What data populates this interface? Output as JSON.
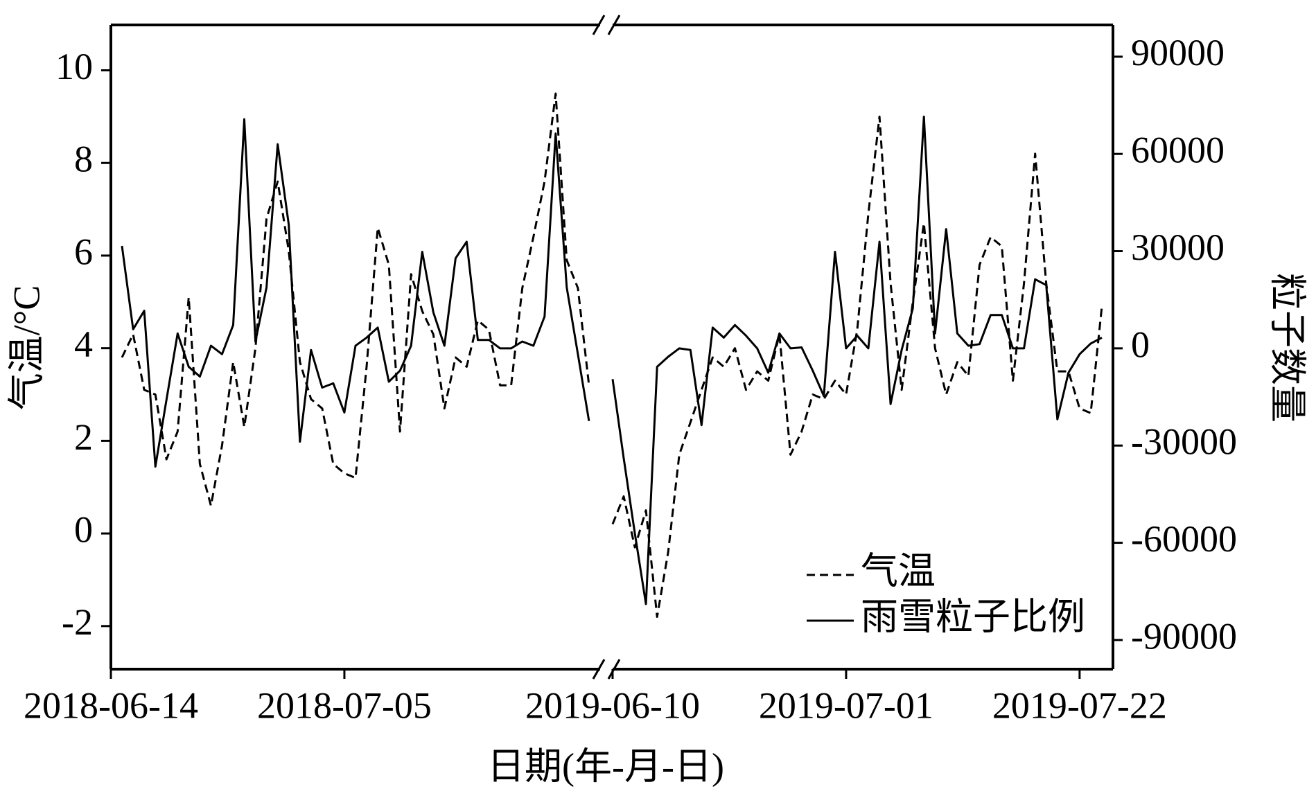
{
  "chart_data": {
    "type": "line",
    "xlabel": "日期(年-月-日)",
    "ylabel": "气温/°C",
    "y2label": "粒子数量",
    "ylim": [
      -2.93,
      10.98
    ],
    "yticks": [
      -2,
      0,
      2,
      4,
      6,
      8,
      10
    ],
    "y2lim": [
      -99000,
      99800
    ],
    "y2ticks": [
      -90000,
      -60000,
      -30000,
      0,
      30000,
      60000,
      90000
    ],
    "x_segments": [
      {
        "xlim": [
          "2018-06-14",
          "2018-07-28"
        ],
        "xticks": [
          "2018-06-14",
          "2018-07-05"
        ]
      },
      {
        "xlim": [
          "2019-06-10",
          "2019-07-25"
        ],
        "xticks": [
          "2019-06-10",
          "2019-07-01",
          "2019-07-22"
        ]
      }
    ],
    "legend": "lower right",
    "x": [
      "2018-06-15",
      "2018-06-16",
      "2018-06-17",
      "2018-06-18",
      "2018-06-19",
      "2018-06-20",
      "2018-06-21",
      "2018-06-22",
      "2018-06-23",
      "2018-06-24",
      "2018-06-25",
      "2018-06-26",
      "2018-06-27",
      "2018-06-28",
      "2018-06-29",
      "2018-06-30",
      "2018-07-01",
      "2018-07-02",
      "2018-07-03",
      "2018-07-04",
      "2018-07-05",
      "2018-07-06",
      "2018-07-07",
      "2018-07-08",
      "2018-07-09",
      "2018-07-10",
      "2018-07-11",
      "2018-07-12",
      "2018-07-13",
      "2018-07-14",
      "2018-07-15",
      "2018-07-16",
      "2018-07-17",
      "2018-07-18",
      "2018-07-19",
      "2018-07-20",
      "2018-07-21",
      "2018-07-22",
      "2018-07-23",
      "2018-07-24",
      "2018-07-25",
      "2018-07-26",
      "2018-07-27",
      "2019-06-10",
      "2019-06-11",
      "2019-06-12",
      "2019-06-13",
      "2019-06-14",
      "2019-06-15",
      "2019-06-16",
      "2019-06-17",
      "2019-06-18",
      "2019-06-19",
      "2019-06-20",
      "2019-06-21",
      "2019-06-22",
      "2019-06-23",
      "2019-06-24",
      "2019-06-25",
      "2019-06-26",
      "2019-06-27",
      "2019-06-28",
      "2019-06-29",
      "2019-06-30",
      "2019-07-01",
      "2019-07-02",
      "2019-07-03",
      "2019-07-04",
      "2019-07-05",
      "2019-07-06",
      "2019-07-07",
      "2019-07-08",
      "2019-07-09",
      "2019-07-10",
      "2019-07-11",
      "2019-07-12",
      "2019-07-13",
      "2019-07-14",
      "2019-07-15",
      "2019-07-16",
      "2019-07-17",
      "2019-07-18",
      "2019-07-19",
      "2019-07-20",
      "2019-07-21",
      "2019-07-22",
      "2019-07-23",
      "2019-07-24"
    ],
    "series": [
      {
        "name": "气温",
        "color": "#000000",
        "dash": "dashed",
        "values": [
          3.8,
          4.3,
          3.1,
          3.0,
          1.6,
          2.2,
          5.1,
          1.5,
          0.6,
          1.9,
          3.7,
          2.3,
          4.0,
          6.8,
          7.6,
          6.1,
          3.7,
          2.9,
          2.7,
          1.5,
          1.3,
          1.2,
          3.6,
          6.6,
          5.8,
          2.2,
          5.6,
          4.8,
          4.3,
          2.7,
          3.8,
          3.6,
          4.6,
          4.4,
          3.2,
          3.2,
          5.3,
          6.4,
          7.6,
          9.5,
          5.9,
          5.3,
          3.2,
          0.2,
          0.8,
          -0.3,
          0.5,
          -1.8,
          -0.4,
          1.7,
          2.4,
          3.1,
          3.8,
          3.6,
          4.0,
          3.1,
          3.5,
          3.3,
          4.3,
          1.7,
          2.2,
          3.0,
          2.9,
          3.3,
          3.0,
          4.4,
          6.9,
          9.0,
          5.4,
          3.1,
          5.0,
          6.7,
          4.0,
          3.0,
          3.7,
          3.4,
          5.8,
          6.4,
          6.2,
          3.3,
          5.4,
          8.2,
          5.4,
          3.5,
          3.5,
          2.7,
          2.6,
          4.9
        ]
      },
      {
        "name": "雨雪粒子比例",
        "color": "#000000",
        "dash": "solid",
        "axis": "y2",
        "values": [
          31600,
          5900,
          11600,
          -36500,
          -15900,
          4600,
          -5700,
          -8700,
          800,
          -1800,
          7200,
          70700,
          2100,
          18800,
          63000,
          38100,
          -28800,
          -500,
          -12100,
          -10800,
          -19800,
          800,
          3300,
          6400,
          -10300,
          -6900,
          800,
          29800,
          11100,
          800,
          27800,
          32900,
          2600,
          2600,
          0,
          0,
          2100,
          800,
          9800,
          66300,
          18800,
          -1800,
          -22400,
          -9500,
          -33900,
          -57100,
          -78900,
          -5700,
          -2600,
          0,
          -500,
          -23700,
          6400,
          3300,
          7200,
          3900,
          0,
          -7500,
          4600,
          0,
          300,
          -6900,
          -14700,
          29800,
          0,
          3900,
          0,
          32900,
          -17200,
          -500,
          12300,
          71500,
          4600,
          36800,
          4600,
          800,
          1300,
          10300,
          10300,
          0,
          0,
          21300,
          19500,
          -21900,
          -7500,
          -1800,
          1500,
          3300
        ]
      }
    ]
  }
}
